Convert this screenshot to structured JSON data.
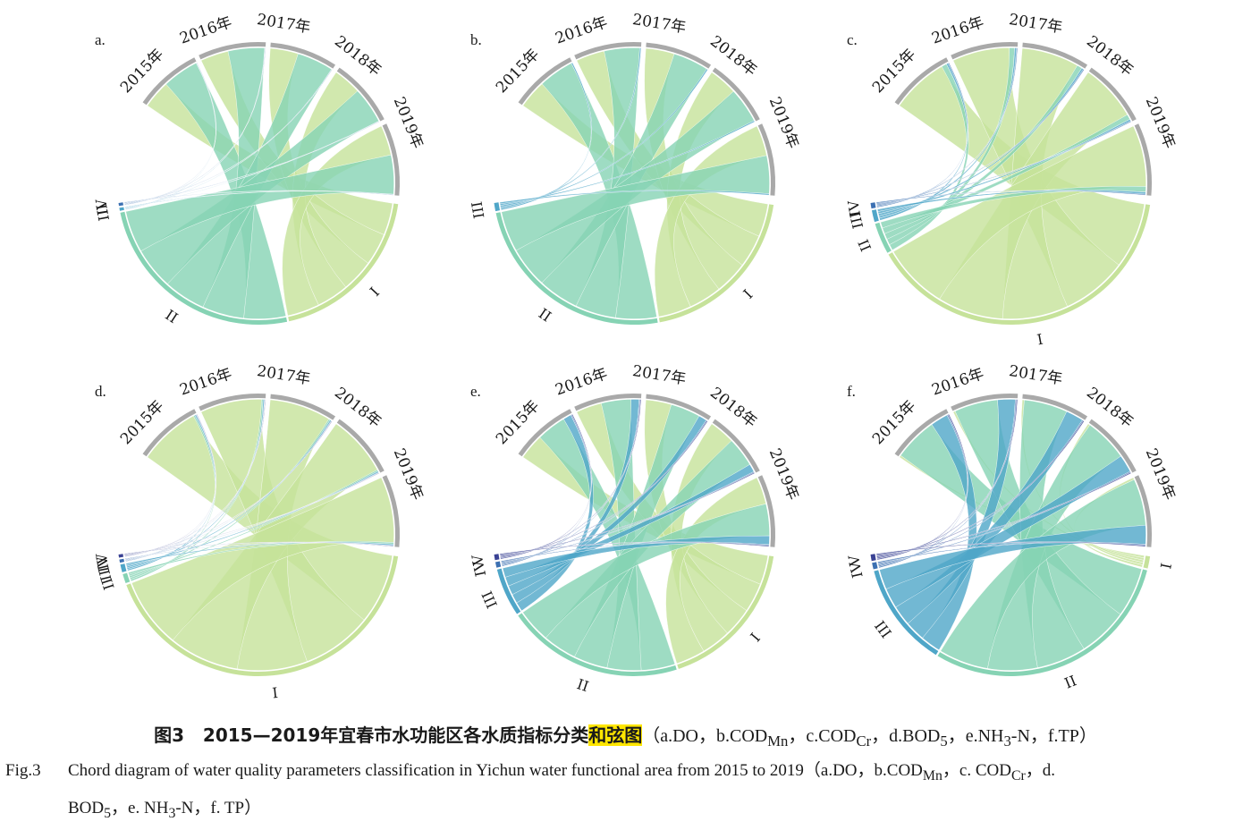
{
  "colors": {
    "ring_gray": "#a9a9a9",
    "class_I": "#c6e29a",
    "class_II": "#86d3b4",
    "class_III": "#4fa6c8",
    "class_IV": "#3c70b2",
    "class_V": "#3a4294"
  },
  "years": [
    "2015年",
    "2016年",
    "2017年",
    "2018年",
    "2019年"
  ],
  "panels": [
    {
      "label": "a.",
      "classes": [
        {
          "name": "I",
          "weight": 2.0,
          "color": "class_I"
        },
        {
          "name": "II",
          "weight": 2.6,
          "color": "class_II"
        },
        {
          "name": "III",
          "weight": 0.03,
          "color": "class_III"
        },
        {
          "name": "IV",
          "weight": 0.03,
          "color": "class_IV"
        }
      ]
    },
    {
      "label": "b.",
      "classes": [
        {
          "name": "I",
          "weight": 2.1,
          "color": "class_I"
        },
        {
          "name": "II",
          "weight": 2.6,
          "color": "class_II"
        },
        {
          "name": "III",
          "weight": 0.1,
          "color": "class_III"
        }
      ]
    },
    {
      "label": "c.",
      "classes": [
        {
          "name": "I",
          "weight": 4.4,
          "color": "class_I"
        },
        {
          "name": "II",
          "weight": 0.4,
          "color": "class_II"
        },
        {
          "name": "III",
          "weight": 0.15,
          "color": "class_III"
        },
        {
          "name": "IV",
          "weight": 0.07,
          "color": "class_IV"
        }
      ]
    },
    {
      "label": "d.",
      "classes": [
        {
          "name": "I",
          "weight": 4.7,
          "color": "class_I"
        },
        {
          "name": "II",
          "weight": 0.12,
          "color": "class_II"
        },
        {
          "name": "III",
          "weight": 0.1,
          "color": "class_III"
        },
        {
          "name": "IV",
          "weight": 0.04,
          "color": "class_IV"
        },
        {
          "name": "V",
          "weight": 0.04,
          "color": "class_V"
        }
      ]
    },
    {
      "label": "e.",
      "classes": [
        {
          "name": "I",
          "weight": 1.9,
          "color": "class_I"
        },
        {
          "name": "II",
          "weight": 2.2,
          "color": "class_II"
        },
        {
          "name": "III",
          "weight": 0.6,
          "color": "class_III"
        },
        {
          "name": "IV",
          "weight": 0.07,
          "color": "class_IV"
        },
        {
          "name": "V",
          "weight": 0.07,
          "color": "class_V"
        }
      ]
    },
    {
      "label": "f.",
      "classes": [
        {
          "name": "I",
          "weight": 0.15,
          "color": "class_I"
        },
        {
          "name": "II",
          "weight": 3.2,
          "color": "class_II"
        },
        {
          "name": "III",
          "weight": 1.3,
          "color": "class_III"
        },
        {
          "name": "IV",
          "weight": 0.08,
          "color": "class_IV"
        },
        {
          "name": "V",
          "weight": 0.08,
          "color": "class_V"
        }
      ]
    }
  ],
  "caption": {
    "cn_fig": "图3",
    "cn_title_main": "2015—2019年宜春市水功能区各水质指标分类",
    "cn_title_highlight": "和弦图",
    "cn_paren": "（a.DO，b.COD",
    "cn_sub1": "Mn",
    "cn_p2": "，c.COD",
    "cn_sub2": "Cr",
    "cn_p3": "，d.BOD",
    "cn_sub3": "5",
    "cn_p4": "，e.NH",
    "cn_sub4": "3",
    "cn_p5": "-N，f.TP）",
    "en_fig": "Fig.3",
    "en_line1_a": "Chord diagram of water quality parameters classification in Yichun water functional area from 2015 to 2019（a.DO，b.COD",
    "en_sub1": "Mn",
    "en_line1_b": "，c. COD",
    "en_sub2": "Cr",
    "en_line1_c": "，d.",
    "en_line2_a": "BOD",
    "en_sub3": "5",
    "en_line2_b": "，e. NH",
    "en_sub4": "3",
    "en_line2_c": "-N，f. TP）"
  }
}
